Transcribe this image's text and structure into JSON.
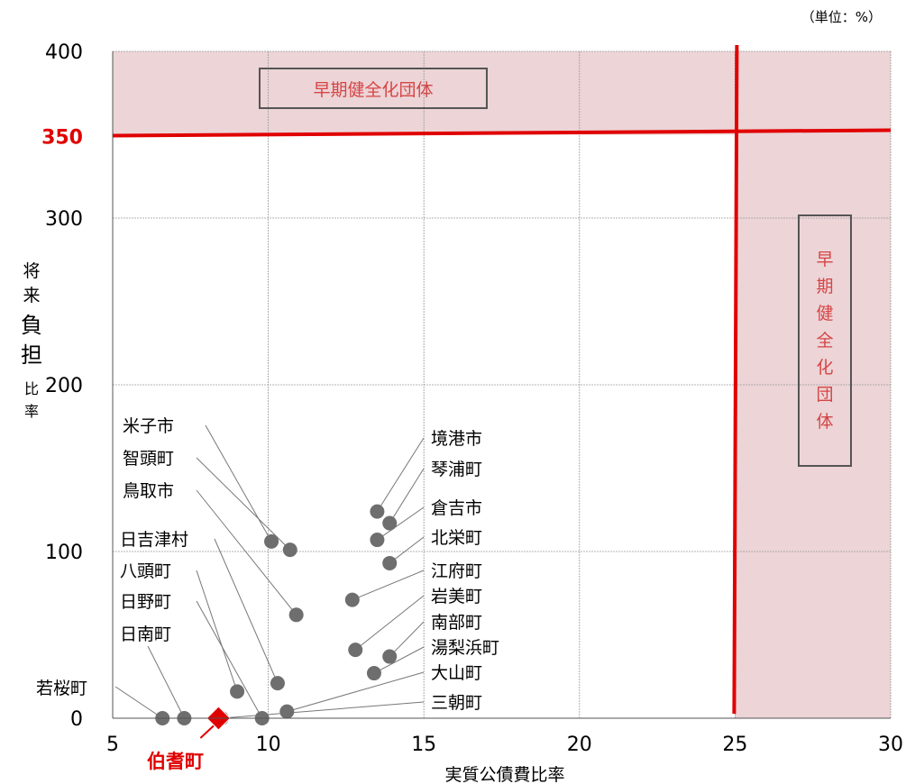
{
  "chart_data": {
    "type": "scatter",
    "unit_note": "（単位：%）",
    "xlabel": "実質公債費比率",
    "ylabel_chars": [
      "将",
      "来",
      "負",
      "担",
      "比",
      "率"
    ],
    "x_ticks": [
      "5",
      "10",
      "15",
      "20",
      "25",
      "30"
    ],
    "y_ticks": [
      "0",
      "100",
      "200",
      "300",
      "400"
    ],
    "y_threshold_tick": "350",
    "xlim": [
      5,
      30
    ],
    "ylim": [
      0,
      400
    ],
    "grid": true,
    "thresholds": {
      "x": 25,
      "y": 350
    },
    "zones": {
      "top_label": "早期健全化団体",
      "right_label_chars": [
        "早",
        "期",
        "健",
        "全",
        "化",
        "団",
        "体"
      ]
    },
    "highlight": {
      "name": "伯耆町",
      "x": 8.4,
      "y": 0,
      "color": "#e00000"
    },
    "points": [
      {
        "name": "米子市",
        "x": 10.1,
        "y": 106
      },
      {
        "name": "智頭町",
        "x": 10.7,
        "y": 101
      },
      {
        "name": "鳥取市",
        "x": 10.9,
        "y": 62
      },
      {
        "name": "日吉津村",
        "x": 10.3,
        "y": 21
      },
      {
        "name": "八頭町",
        "x": 9.0,
        "y": 16
      },
      {
        "name": "日野町",
        "x": 9.8,
        "y": 0
      },
      {
        "name": "日南町",
        "x": 7.3,
        "y": 0
      },
      {
        "name": "若桜町",
        "x": 6.6,
        "y": 0
      },
      {
        "name": "境港市",
        "x": 13.5,
        "y": 124
      },
      {
        "name": "琴浦町",
        "x": 13.9,
        "y": 117
      },
      {
        "name": "倉吉市",
        "x": 13.5,
        "y": 107
      },
      {
        "name": "北栄町",
        "x": 13.9,
        "y": 93
      },
      {
        "name": "江府町",
        "x": 12.7,
        "y": 71
      },
      {
        "name": "岩美町",
        "x": 12.8,
        "y": 41
      },
      {
        "name": "南部町",
        "x": 13.9,
        "y": 37
      },
      {
        "name": "湯梨浜町",
        "x": 13.4,
        "y": 27
      },
      {
        "name": "大山町",
        "x": 10.6,
        "y": 4
      },
      {
        "name": "三朝町",
        "x": 8.5,
        "y": 0
      }
    ],
    "point_color": "#6e6e6e",
    "zone_color": "#ecd4d7",
    "threshold_color": "#e00000"
  }
}
